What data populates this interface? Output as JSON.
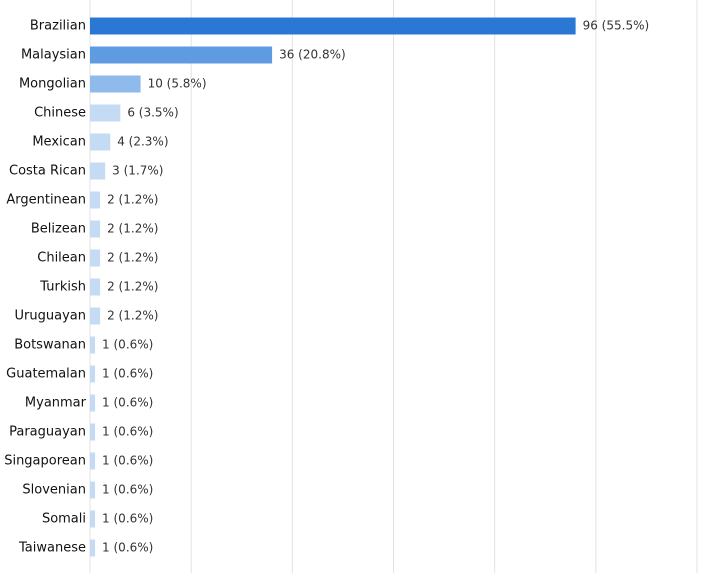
{
  "chart_data": {
    "type": "bar",
    "orientation": "horizontal",
    "categories": [
      "Brazilian",
      "Malaysian",
      "Mongolian",
      "Chinese",
      "Mexican",
      "Costa Rican",
      "Argentinean",
      "Belizean",
      "Chilean",
      "Turkish",
      "Uruguayan",
      "Botswanan",
      "Guatemalan",
      "Myanmar",
      "Paraguayan",
      "Singaporean",
      "Slovenian",
      "Somali",
      "Taiwanese"
    ],
    "values": [
      96,
      36,
      10,
      6,
      4,
      3,
      2,
      2,
      2,
      2,
      2,
      1,
      1,
      1,
      1,
      1,
      1,
      1,
      1
    ],
    "value_labels": [
      "96 (55.5%)",
      "36 (20.8%)",
      "10 (5.8%)",
      "6 (3.5%)",
      "4 (2.3%)",
      "3 (1.7%)",
      "2 (1.2%)",
      "2 (1.2%)",
      "2 (1.2%)",
      "2 (1.2%)",
      "2 (1.2%)",
      "1 (0.6%)",
      "1 (0.6%)",
      "1 (0.6%)",
      "1 (0.6%)",
      "1 (0.6%)",
      "1 (0.6%)",
      "1 (0.6%)",
      "1 (0.6%)"
    ],
    "colors": [
      "#2a77d4",
      "#5e9be0",
      "#8fbbec",
      "#c5dbf4",
      "#c5dbf4",
      "#c5dbf4",
      "#c5dbf4",
      "#c5dbf4",
      "#c5dbf4",
      "#c5dbf4",
      "#c5dbf4",
      "#c5dbf4",
      "#c5dbf4",
      "#c5dbf4",
      "#c5dbf4",
      "#c5dbf4",
      "#c5dbf4",
      "#c5dbf4",
      "#c5dbf4"
    ],
    "xlim": [
      0,
      120
    ],
    "xticks": [
      0,
      20,
      40,
      60,
      80,
      100,
      120
    ],
    "grid": true
  }
}
